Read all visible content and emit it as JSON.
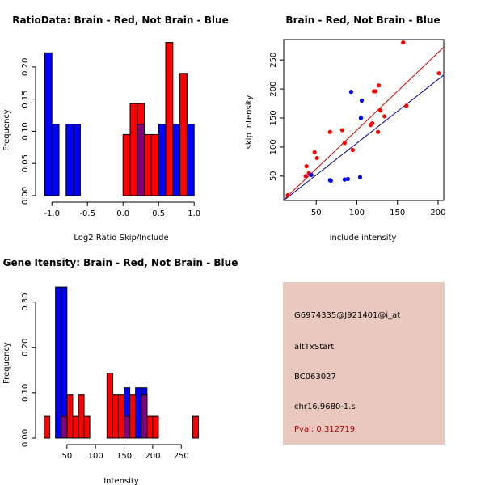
{
  "colors": {
    "brain": "#ff0000",
    "not_brain": "#0000ff",
    "overlap": "#800080",
    "brain_line": "#cc0000",
    "not_brain_line": "#000099",
    "panel": "#e8c8bf",
    "pval": "#b00000"
  },
  "chart_data": [
    {
      "type": "bar",
      "title": "RatioData: Brain - Red, Not Brain - Blue",
      "xlabel": "Log2 Ratio Skip/Include",
      "ylabel": "Frequency",
      "xlim": [
        -1.15,
        1.1
      ],
      "ylim": [
        0,
        0.24
      ],
      "xticks": [
        -1.0,
        -0.5,
        0.0,
        0.5,
        1.0
      ],
      "xtick_labels": [
        "-1.0",
        "-0.5",
        "0.0",
        "0.5",
        "1.0"
      ],
      "yticks": [
        0.0,
        0.05,
        0.1,
        0.15,
        0.2
      ],
      "ytick_labels": [
        "0.00",
        "0.05",
        "0.10",
        "0.15",
        "0.20"
      ],
      "series": [
        {
          "name": "Not Brain",
          "bins": [
            [
              -1.1,
              -1.0,
              0.222
            ],
            [
              -1.0,
              -0.9,
              0.111
            ],
            [
              -0.8,
              -0.7,
              0.111
            ],
            [
              -0.7,
              -0.6,
              0.111
            ],
            [
              0.2,
              0.3,
              0.111
            ],
            [
              0.5,
              0.6,
              0.111
            ],
            [
              0.7,
              0.8,
              0.111
            ],
            [
              0.9,
              1.0,
              0.111
            ]
          ]
        },
        {
          "name": "Brain",
          "bins": [
            [
              0.0,
              0.1,
              0.095
            ],
            [
              0.1,
              0.2,
              0.143
            ],
            [
              0.2,
              0.3,
              0.143
            ],
            [
              0.3,
              0.4,
              0.095
            ],
            [
              0.4,
              0.5,
              0.095
            ],
            [
              0.6,
              0.7,
              0.238
            ],
            [
              0.8,
              0.9,
              0.19
            ]
          ]
        }
      ]
    },
    {
      "type": "scatter",
      "title": "Brain - Red, Not Brain - Blue",
      "xlabel": "include intensity",
      "ylabel": "skip intensity",
      "xlim": [
        10,
        207
      ],
      "ylim": [
        8,
        285
      ],
      "xticks": [
        50,
        100,
        150,
        200
      ],
      "xtick_labels": [
        "50",
        "100",
        "150",
        "200"
      ],
      "yticks": [
        50,
        100,
        150,
        200,
        250
      ],
      "ytick_labels": [
        "50",
        "100",
        "150",
        "200",
        "250"
      ],
      "series": [
        {
          "name": "Brain",
          "points": [
            [
              15,
              17
            ],
            [
              37,
              50
            ],
            [
              38,
              67
            ],
            [
              41,
              55
            ],
            [
              48,
              91
            ],
            [
              51,
              81
            ],
            [
              67,
              126
            ],
            [
              82,
              129
            ],
            [
              85,
              107
            ],
            [
              95,
              95
            ],
            [
              117,
              138
            ],
            [
              119,
              141
            ],
            [
              121,
              196
            ],
            [
              123,
              196
            ],
            [
              126,
              126
            ],
            [
              127,
              206
            ],
            [
              129,
              163
            ],
            [
              134,
              153
            ],
            [
              157,
              280
            ],
            [
              161,
              171
            ],
            [
              201,
              227
            ]
          ]
        },
        {
          "name": "Not Brain",
          "points": [
            [
              44,
              52
            ],
            [
              67,
              43
            ],
            [
              68,
              42
            ],
            [
              85,
              44
            ],
            [
              89,
              45
            ],
            [
              93,
              195
            ],
            [
              104,
              48
            ],
            [
              105,
              150
            ],
            [
              106,
              180
            ]
          ]
        }
      ],
      "fit_lines": [
        {
          "name": "Brain",
          "x": [
            10,
            207
          ],
          "y": [
            9,
            272
          ]
        },
        {
          "name": "Not Brain",
          "x": [
            10,
            207
          ],
          "y": [
            8,
            224
          ]
        }
      ]
    },
    {
      "type": "bar",
      "title": "Gene Itensity: Brain - Red, Not Brain - Blue",
      "xlabel": "Intensity",
      "ylabel": "Frequency",
      "xlim": [
        5,
        285
      ],
      "ylim": [
        0,
        0.335
      ],
      "xticks": [
        50,
        100,
        150,
        200,
        250
      ],
      "xtick_labels": [
        "50",
        "100",
        "150",
        "200",
        "250"
      ],
      "yticks": [
        0.0,
        0.1,
        0.2,
        0.3
      ],
      "ytick_labels": [
        "0.00",
        "0.10",
        "0.20",
        "0.30"
      ],
      "series": [
        {
          "name": "Not Brain",
          "bins": [
            [
              30,
              40,
              0.333
            ],
            [
              40,
              50,
              0.333
            ],
            [
              150,
              160,
              0.111
            ],
            [
              170,
              180,
              0.111
            ],
            [
              180,
              190,
              0.111
            ]
          ]
        },
        {
          "name": "Brain",
          "bins": [
            [
              10,
              20,
              0.048
            ],
            [
              40,
              50,
              0.048
            ],
            [
              50,
              60,
              0.095
            ],
            [
              60,
              70,
              0.048
            ],
            [
              70,
              80,
              0.095
            ],
            [
              80,
              90,
              0.048
            ],
            [
              120,
              130,
              0.143
            ],
            [
              130,
              140,
              0.095
            ],
            [
              140,
              150,
              0.095
            ],
            [
              150,
              160,
              0.048
            ],
            [
              160,
              170,
              0.095
            ],
            [
              180,
              190,
              0.095
            ],
            [
              190,
              200,
              0.048
            ],
            [
              200,
              210,
              0.048
            ],
            [
              270,
              280,
              0.048
            ]
          ]
        }
      ]
    }
  ],
  "info": {
    "probe_id": "G6974335@J921401@i_at",
    "event_type": "altTxStart",
    "accession": "BC063027",
    "locus": "chr16.9680-1.s",
    "pval": "Pval: 0.312719"
  }
}
